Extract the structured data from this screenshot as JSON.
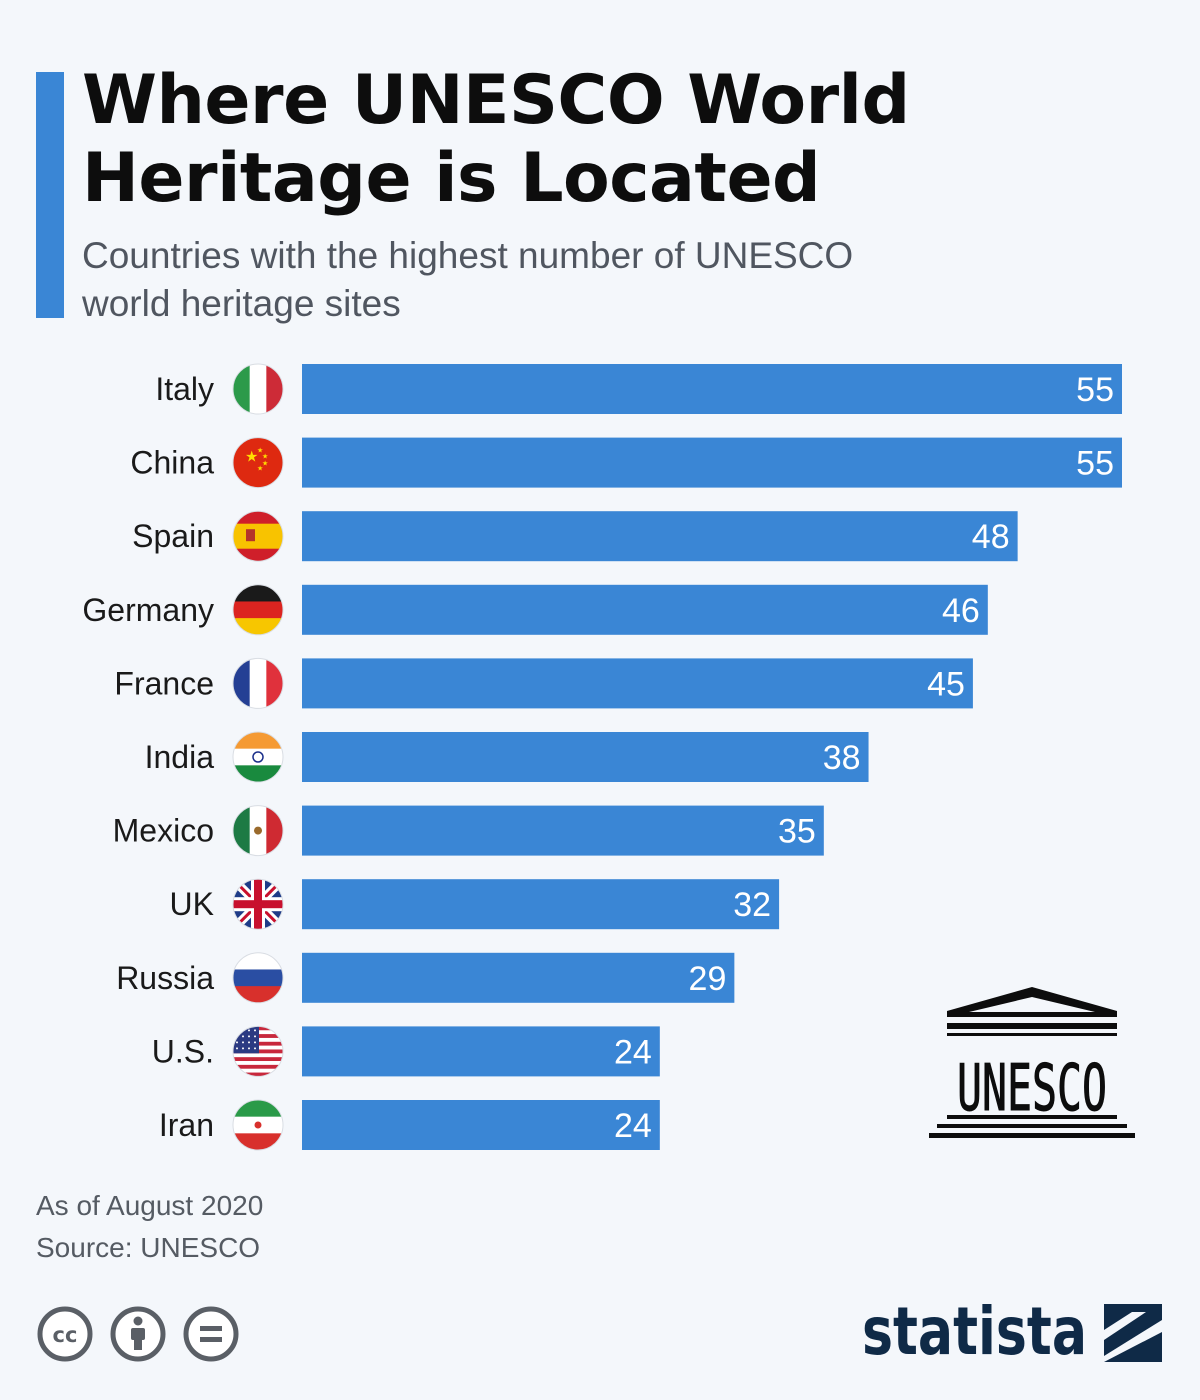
{
  "header": {
    "title_line1": "Where UNESCO World",
    "title_line2": "Heritage is Located",
    "subtitle_line1": "Countries with the highest number of UNESCO",
    "subtitle_line2": "world heritage sites"
  },
  "chart_data": {
    "type": "bar",
    "orientation": "horizontal",
    "categories": [
      "Italy",
      "China",
      "Spain",
      "Germany",
      "France",
      "India",
      "Mexico",
      "UK",
      "Russia",
      "U.S.",
      "Iran"
    ],
    "values": [
      55,
      55,
      48,
      46,
      45,
      38,
      35,
      32,
      29,
      24,
      24
    ],
    "flags": [
      "flag-italy-icon",
      "flag-china-icon",
      "flag-spain-icon",
      "flag-germany-icon",
      "flag-france-icon",
      "flag-india-icon",
      "flag-mexico-icon",
      "flag-uk-icon",
      "flag-russia-icon",
      "flag-us-icon",
      "flag-iran-icon"
    ],
    "xlim": [
      0,
      55
    ],
    "grid": false,
    "legend": "none",
    "data_labels": "inside-end"
  },
  "footer": {
    "note": "As of August 2020",
    "source": "Source: UNESCO",
    "license_icons": [
      "cc-icon",
      "attribution-icon",
      "no-derivatives-icon"
    ]
  },
  "logos": {
    "unesco_text": "UNESCO",
    "statista_text": "statista"
  },
  "colors": {
    "bar": "#3a86d5",
    "accent": "#3a86d5",
    "label_text": "#1a1a1a",
    "value_text": "#ffffff",
    "statista_navy": "#0f2a47"
  }
}
